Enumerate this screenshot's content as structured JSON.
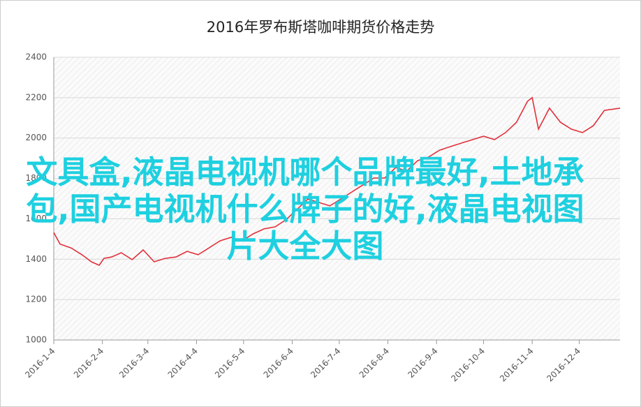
{
  "chart_data": {
    "type": "line",
    "title": "2016年罗布斯塔咖啡期货价格走势",
    "x": [
      "2016-1-4",
      "2016-1-8",
      "2016-1-15",
      "2016-1-22",
      "2016-1-28",
      "2016-2-2",
      "2016-2-5",
      "2016-2-10",
      "2016-2-16",
      "2016-2-23",
      "2016-3-1",
      "2016-3-8",
      "2016-3-15",
      "2016-3-22",
      "2016-3-29",
      "2016-4-5",
      "2016-4-12",
      "2016-4-19",
      "2016-4-26",
      "2016-5-3",
      "2016-5-10",
      "2016-5-17",
      "2016-5-24",
      "2016-5-31",
      "2016-6-7",
      "2016-6-14",
      "2016-6-21",
      "2016-6-28",
      "2016-7-5",
      "2016-7-12",
      "2016-7-19",
      "2016-7-26",
      "2016-8-2",
      "2016-8-9",
      "2016-8-16",
      "2016-8-23",
      "2016-8-30",
      "2016-9-6",
      "2016-9-13",
      "2016-9-20",
      "2016-9-27",
      "2016-10-4",
      "2016-10-11",
      "2016-10-18",
      "2016-10-25",
      "2016-11-1",
      "2016-11-4",
      "2016-11-8",
      "2016-11-15",
      "2016-11-22",
      "2016-11-29",
      "2016-12-6",
      "2016-12-13",
      "2016-12-20",
      "2016-12-30"
    ],
    "series": [
      {
        "name": "罗布斯塔咖啡期货价格",
        "color": "#e0303a",
        "values": [
          1532,
          1475,
          1456,
          1422,
          1387,
          1370,
          1404,
          1411,
          1432,
          1398,
          1446,
          1387,
          1404,
          1411,
          1439,
          1422,
          1456,
          1491,
          1508,
          1491,
          1525,
          1550,
          1560,
          1595,
          1646,
          1698,
          1681,
          1664,
          1698,
          1733,
          1767,
          1802,
          1802,
          1854,
          1837,
          1888,
          1906,
          1940,
          1958,
          1975,
          1992,
          2009,
          1992,
          2027,
          2078,
          2182,
          2200,
          2044,
          2148,
          2078,
          2044,
          2027,
          2061,
          2137,
          2148
        ]
      }
    ],
    "xlim": [
      "2016-1-4",
      "2016-12-30"
    ],
    "xticks": [
      "2016-1-4",
      "2016-2-4",
      "2016-3-4",
      "2016-4-4",
      "2016-5-4",
      "2016-6-4",
      "2016-7-4",
      "2016-8-4",
      "2016-9-4",
      "2016-10-4",
      "2016-11-4",
      "2016-12-4"
    ],
    "ylim": [
      1000,
      2400
    ],
    "yticks": [
      1000,
      1200,
      1400,
      1600,
      1800,
      2000,
      2200,
      2400
    ],
    "grid": true,
    "overlay_text": "文具盒,液晶电视机哪个品牌最好,土地承包,国产电视机什么牌子的好,液晶电视图片大全大图"
  }
}
